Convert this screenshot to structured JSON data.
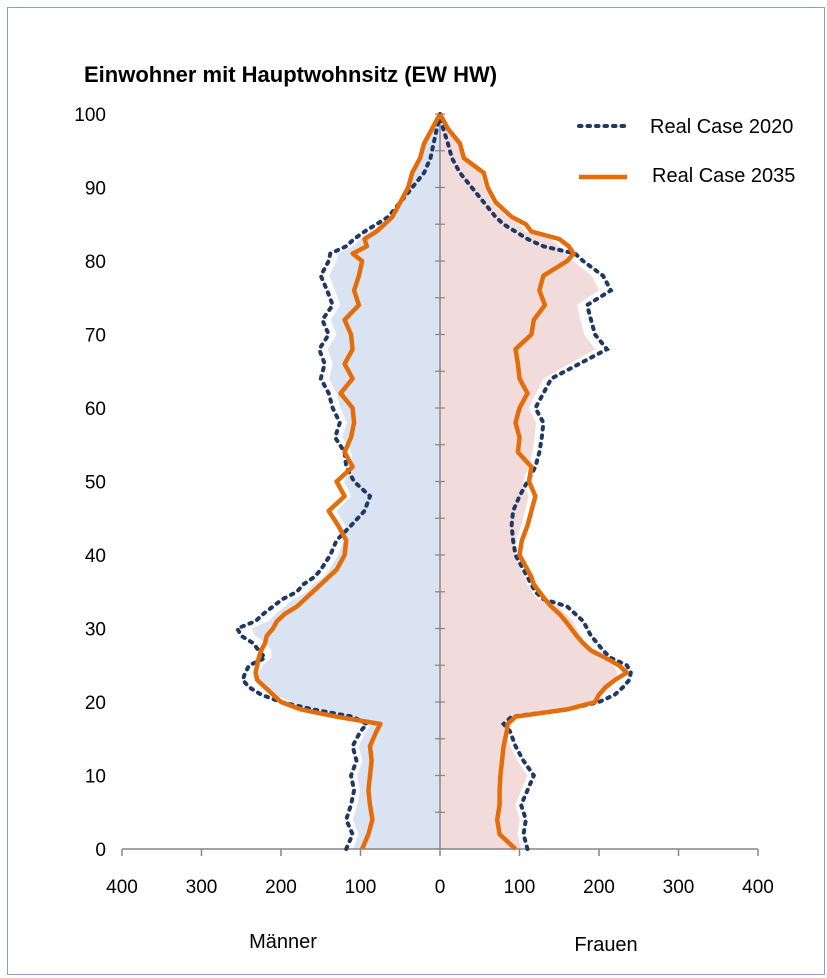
{
  "chart_data": {
    "type": "population-pyramid",
    "title": "Einwohner mit Hauptwohnsitz (EW HW)",
    "x_label_left": "Männer",
    "x_label_right": "Frauen",
    "x_ticks": [
      "400",
      "300",
      "200",
      "100",
      "0",
      "100",
      "200",
      "300",
      "400"
    ],
    "x_range": [
      -400,
      400
    ],
    "y_ticks": [
      "0",
      "10",
      "20",
      "30",
      "40",
      "50",
      "60",
      "70",
      "80",
      "90",
      "100"
    ],
    "y_range": [
      0,
      100
    ],
    "legend": [
      {
        "name": "Real Case 2020",
        "style": "dotted",
        "color": "#1f3864"
      },
      {
        "name": "Real Case 2035",
        "style": "solid",
        "color": "#e46c0a"
      }
    ],
    "fill_colors": {
      "men": "#dae3f1",
      "women": "#f2dcdb"
    },
    "ages": [
      0,
      2,
      4,
      6,
      8,
      10,
      12,
      14,
      16,
      17,
      18,
      19,
      20,
      21,
      22,
      23,
      24,
      25,
      26,
      27,
      28,
      29,
      30,
      31,
      32,
      33,
      34,
      35,
      36,
      37,
      38,
      40,
      42,
      44,
      46,
      48,
      50,
      52,
      54,
      56,
      58,
      60,
      62,
      64,
      66,
      68,
      70,
      72,
      74,
      76,
      78,
      80,
      81,
      82,
      83,
      84,
      85,
      86,
      88,
      90,
      92,
      94,
      96,
      98,
      99,
      100
    ],
    "series": [
      {
        "name": "Real Case 2020",
        "men": [
          118,
          110,
          118,
          112,
          108,
          112,
          105,
          110,
          100,
          92,
          110,
          160,
          200,
          225,
          240,
          248,
          245,
          240,
          220,
          228,
          235,
          250,
          255,
          232,
          222,
          210,
          198,
          180,
          172,
          158,
          150,
          138,
          130,
          112,
          95,
          88,
          108,
          118,
          120,
          132,
          126,
          135,
          140,
          150,
          145,
          152,
          140,
          148,
          135,
          142,
          150,
          140,
          138,
          118,
          108,
          95,
          80,
          65,
          50,
          35,
          20,
          12,
          8,
          4,
          2,
          0
        ],
        "women": [
          110,
          105,
          108,
          102,
          110,
          118,
          105,
          95,
          88,
          80,
          90,
          160,
          200,
          220,
          230,
          238,
          240,
          235,
          215,
          205,
          198,
          190,
          185,
          180,
          170,
          160,
          130,
          120,
          115,
          110,
          105,
          95,
          92,
          90,
          92,
          100,
          110,
          120,
          125,
          128,
          130,
          120,
          130,
          140,
          175,
          210,
          195,
          190,
          185,
          215,
          205,
          180,
          170,
          130,
          110,
          95,
          80,
          70,
          55,
          40,
          25,
          15,
          10,
          4,
          2,
          0
        ]
      },
      {
        "name": "Real Case 2035",
        "men": [
          98,
          90,
          85,
          88,
          90,
          88,
          86,
          88,
          80,
          75,
          130,
          175,
          200,
          210,
          220,
          230,
          232,
          230,
          228,
          225,
          220,
          218,
          210,
          205,
          195,
          180,
          170,
          160,
          150,
          140,
          130,
          120,
          118,
          128,
          140,
          120,
          130,
          110,
          120,
          112,
          108,
          110,
          125,
          110,
          120,
          110,
          112,
          120,
          102,
          108,
          102,
          98,
          110,
          92,
          95,
          80,
          70,
          60,
          50,
          40,
          35,
          25,
          20,
          10,
          5,
          0
        ],
        "women": [
          95,
          75,
          72,
          75,
          75,
          76,
          78,
          80,
          84,
          85,
          95,
          160,
          195,
          200,
          208,
          220,
          235,
          225,
          208,
          190,
          180,
          172,
          165,
          158,
          150,
          140,
          132,
          125,
          118,
          115,
          110,
          100,
          103,
          110,
          115,
          120,
          112,
          115,
          98,
          100,
          95,
          100,
          110,
          100,
          98,
          95,
          115,
          118,
          132,
          125,
          130,
          160,
          168,
          162,
          150,
          115,
          108,
          90,
          70,
          60,
          55,
          30,
          25,
          10,
          5,
          0
        ]
      }
    ]
  }
}
